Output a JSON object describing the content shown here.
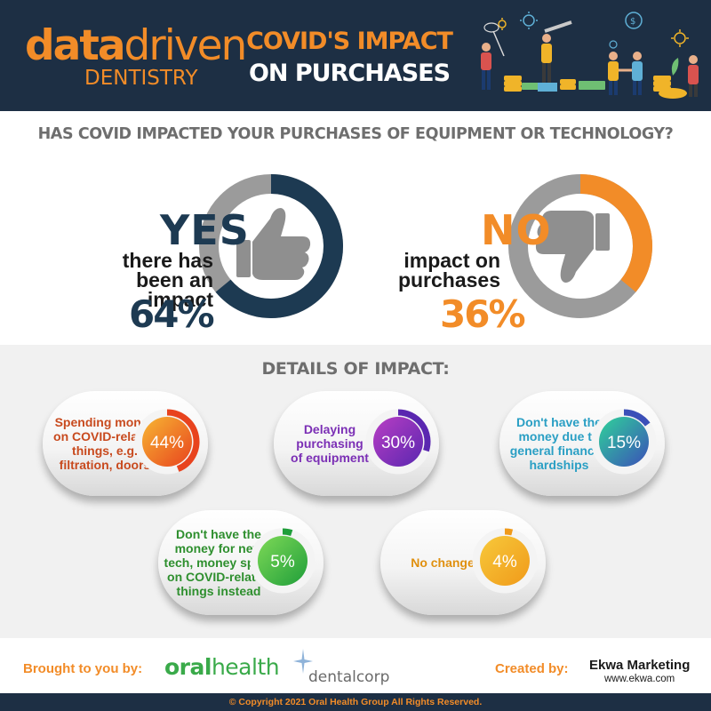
{
  "header": {
    "logo_main_bold": "data",
    "logo_main_light": "driven",
    "logo_sub": "DENTISTRY",
    "title_line1": "COVID'S IMPACT",
    "title_line2": "ON PURCHASES"
  },
  "colors": {
    "navy": "#1d2f44",
    "orange": "#f28c28",
    "gray": "#9b9b9b",
    "teal_dark": "#1e4a60"
  },
  "chart_data": [
    {
      "type": "pie",
      "title": "HAS COVID IMPACTED YOUR PURCHASES OF EQUIPMENT OR TECHNOLOGY?",
      "slices": [
        {
          "label": "YES",
          "description_line1": "there has",
          "description_line2": "been an impact",
          "value": 64,
          "display": "64%",
          "color": "#1d3a52",
          "icon": "thumbs-up-icon"
        },
        {
          "label": "NO",
          "description_line1": "impact on",
          "description_line2": "purchases",
          "value": 36,
          "display": "36%",
          "color": "#f28c28",
          "icon": "thumbs-down-icon"
        }
      ]
    },
    {
      "type": "bar",
      "title": "DETAILS OF IMPACT:",
      "items": [
        {
          "lines": [
            "Spending money",
            "on COVID-related",
            "things, e.g.",
            "filtration, doors"
          ],
          "value": 44,
          "display": "44%",
          "text_color": "#c84a1e",
          "grad_from": "#f7b733",
          "grad_to": "#e8431e"
        },
        {
          "lines": [
            "Delaying",
            "purchasing",
            "of equipment"
          ],
          "value": 30,
          "display": "30%",
          "text_color": "#7b2fb5",
          "grad_from": "#b93ec4",
          "grad_to": "#5a27b0"
        },
        {
          "lines": [
            "Don't have the",
            "money due to",
            "general financial",
            "hardships"
          ],
          "value": 15,
          "display": "15%",
          "text_color": "#2a9fc4",
          "grad_from": "#2fd39a",
          "grad_to": "#3b4fb8"
        },
        {
          "lines": [
            "Don't have the",
            "money for new",
            "tech, money spent",
            "on COVID-related",
            "things instead"
          ],
          "value": 5,
          "display": "5%",
          "text_color": "#2e8f2e",
          "grad_from": "#7ed957",
          "grad_to": "#1f9e3a"
        },
        {
          "lines": [
            "No change"
          ],
          "value": 4,
          "display": "4%",
          "text_color": "#e0900f",
          "grad_from": "#f7c93b",
          "grad_to": "#f09a1a"
        }
      ]
    }
  ],
  "footer": {
    "brought_by": "Brought to you by:",
    "sponsor1_bold": "oral",
    "sponsor1_light": "health",
    "sponsor2": "dentalcorp",
    "created_by": "Created by:",
    "creator": "Ekwa Marketing",
    "creator_url": "www.ekwa.com",
    "copyright": "© Copyright 2021 Oral Health Group All Rights Reserved."
  }
}
